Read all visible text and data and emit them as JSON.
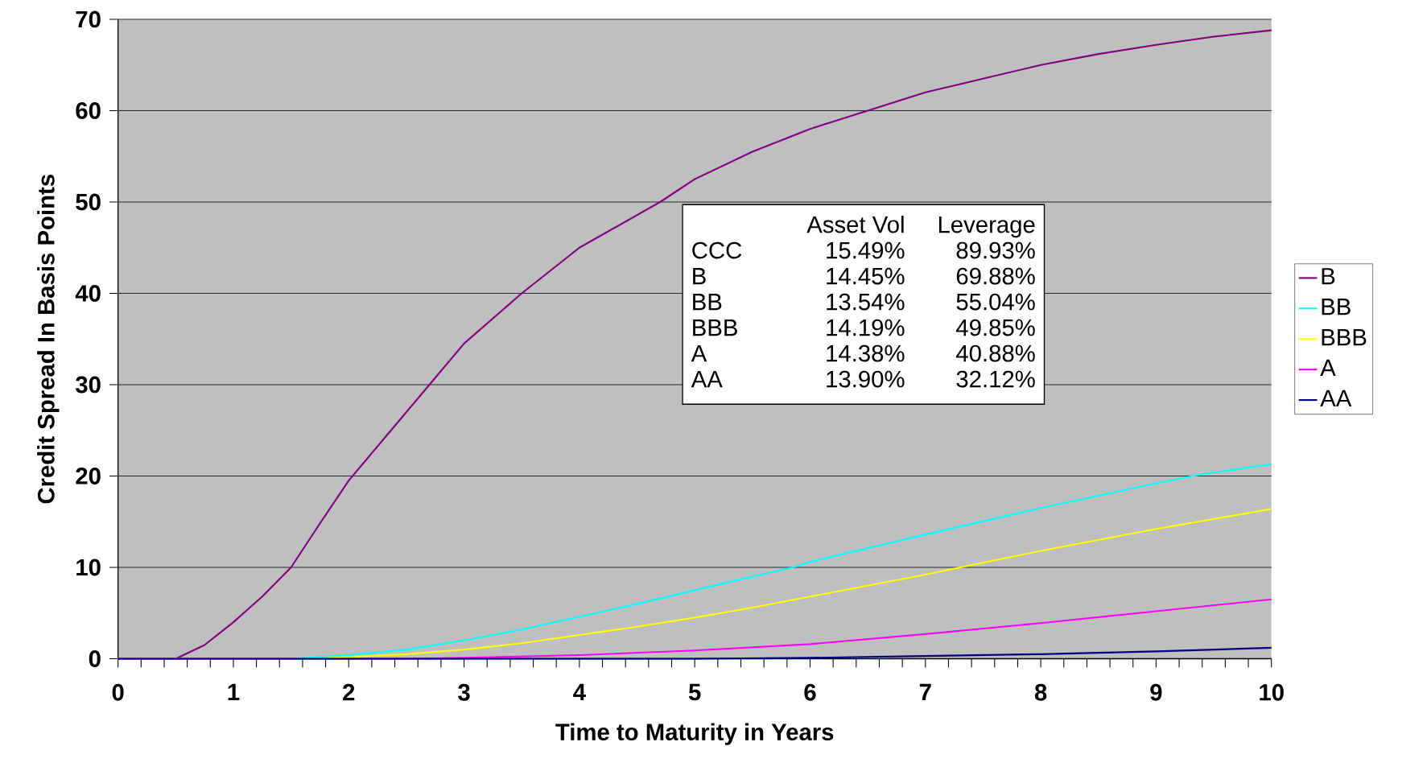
{
  "chart_data": {
    "type": "line",
    "xlabel": "Time to Maturity in Years",
    "ylabel": "Credit Spread In Basis Points",
    "series": [
      {
        "name": "B",
        "color": "#800080",
        "x": [
          0,
          0.5,
          0.75,
          1,
          1.25,
          1.5,
          1.75,
          2,
          2.5,
          2.7,
          3,
          3.5,
          4,
          4.7,
          5,
          5.5,
          6,
          6.5,
          7,
          7.5,
          8,
          8.5,
          9,
          9.5,
          10
        ],
        "values": [
          0,
          0,
          1.5,
          4,
          6.8,
          10,
          14.8,
          19.5,
          27,
          30,
          34.5,
          40,
          45,
          50,
          52.5,
          55.5,
          58,
          60,
          62,
          63.5,
          65,
          66.2,
          67.2,
          68.1,
          68.8
        ]
      },
      {
        "name": "BB",
        "color": "#00ffff",
        "x": [
          0,
          1.5,
          2,
          2.5,
          3,
          3.5,
          4,
          4.5,
          5,
          5.5,
          5.85,
          6,
          7,
          8,
          9,
          9.4,
          10
        ],
        "values": [
          0,
          0,
          0.4,
          1,
          2,
          3.2,
          4.6,
          6,
          7.5,
          9,
          10,
          10.6,
          13.6,
          16.5,
          19.2,
          20.2,
          21.3
        ]
      },
      {
        "name": "BBB",
        "color": "#ffff00",
        "x": [
          0,
          1.7,
          2,
          2.5,
          3,
          3.5,
          4,
          4.5,
          5,
          5.5,
          6,
          7,
          7.3,
          8,
          9,
          10
        ],
        "values": [
          0,
          0,
          0.2,
          0.5,
          1,
          1.7,
          2.6,
          3.5,
          4.5,
          5.6,
          6.8,
          9.2,
          10,
          11.8,
          14.2,
          16.4
        ]
      },
      {
        "name": "A",
        "color": "#ff00ff",
        "x": [
          0,
          2.5,
          3,
          4,
          5,
          6,
          7,
          8,
          9,
          10
        ],
        "values": [
          0,
          0,
          0.1,
          0.4,
          0.9,
          1.6,
          2.7,
          3.9,
          5.2,
          6.5
        ]
      },
      {
        "name": "AA",
        "color": "#000080",
        "x": [
          0,
          5,
          6,
          7,
          8,
          9,
          10
        ],
        "values": [
          0,
          0,
          0.1,
          0.3,
          0.5,
          0.8,
          1.2
        ]
      }
    ],
    "xlim": [
      0,
      10
    ],
    "ylim": [
      0,
      70
    ],
    "xticks": [
      0,
      {
        "value": 0.2,
        "label": null
      },
      {
        "value": 0.4,
        "label": null
      },
      {
        "value": 0.6,
        "label": null
      },
      {
        "value": 0.8,
        "label": null
      },
      1,
      {
        "value": 1.2,
        "label": null
      },
      {
        "value": 1.4,
        "label": null
      },
      {
        "value": 1.6,
        "label": null
      },
      {
        "value": 1.8,
        "label": null
      },
      2,
      {
        "value": 2.2,
        "label": null
      },
      {
        "value": 2.4,
        "label": null
      },
      {
        "value": 2.6,
        "label": null
      },
      {
        "value": 2.8,
        "label": null
      },
      3,
      {
        "value": 3.2,
        "label": null
      },
      {
        "value": 3.4,
        "label": null
      },
      {
        "value": 3.6,
        "label": null
      },
      {
        "value": 3.8,
        "label": null
      },
      4,
      {
        "value": 4.2,
        "label": null
      },
      {
        "value": 4.4,
        "label": null
      },
      {
        "value": 4.6,
        "label": null
      },
      {
        "value": 4.8,
        "label": null
      },
      5,
      {
        "value": 5.2,
        "label": null
      },
      {
        "value": 5.4,
        "label": null
      },
      {
        "value": 5.6,
        "label": null
      },
      {
        "value": 5.8,
        "label": null
      },
      6,
      {
        "value": 6.2,
        "label": null
      },
      {
        "value": 6.4,
        "label": null
      },
      {
        "value": 6.6,
        "label": null
      },
      {
        "value": 6.8,
        "label": null
      },
      7,
      {
        "value": 7.2,
        "label": null
      },
      {
        "value": 7.4,
        "label": null
      },
      {
        "value": 7.6,
        "label": null
      },
      {
        "value": 7.8,
        "label": null
      },
      8,
      {
        "value": 8.2,
        "label": null
      },
      {
        "value": 8.4,
        "label": null
      },
      {
        "value": 8.6,
        "label": null
      },
      {
        "value": 8.8,
        "label": null
      },
      9,
      {
        "value": 9.2,
        "label": null
      },
      {
        "value": 9.4,
        "label": null
      },
      {
        "value": 9.6,
        "label": null
      },
      {
        "value": 9.8,
        "label": null
      },
      10
    ],
    "yticks": [
      0,
      10,
      20,
      30,
      40,
      50,
      60,
      70
    ],
    "grid": "y",
    "legend": "right",
    "marker": "none",
    "line_style": "solid",
    "annotations": [
      "Asset Vol",
      "Leverage",
      "CCC",
      "15.49%",
      "89.93%",
      "B",
      "14.45%",
      "69.88%",
      "BB",
      "13.54%",
      "55.04%",
      "BBB",
      "14.19%",
      "49.85%",
      "A",
      "14.38%",
      "40.88%",
      "AA",
      "13.90%",
      "32.12%"
    ]
  }
}
